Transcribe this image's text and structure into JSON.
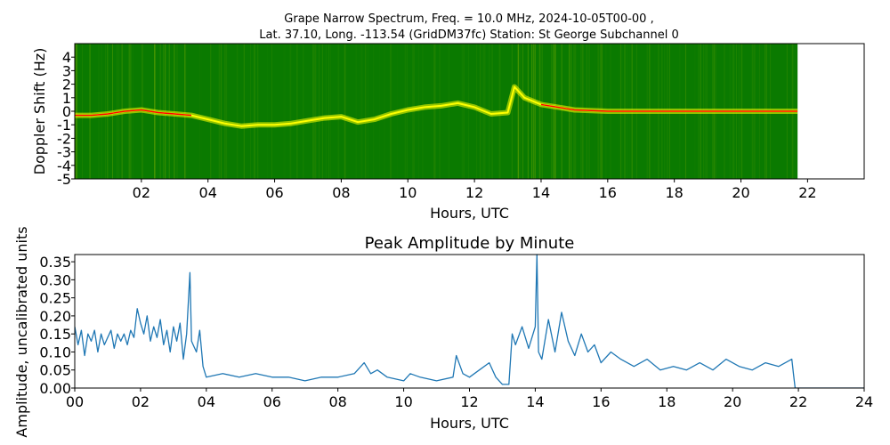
{
  "figure": {
    "title_line1": "Grape Narrow Spectrum, Freq. = 10.0 MHz, 2024-10-05T00-00 ,",
    "title_line2": "Lat.  37.10, Long. -113.54 (GridDM37fc) Station: St George Subchannel 0"
  },
  "chart_data": [
    {
      "type": "heatmap",
      "title": "",
      "xlabel": "Hours, UTC",
      "ylabel": "Doppler Shift (Hz)",
      "xlim": [
        0,
        23.7
      ],
      "ylim": [
        -5,
        5
      ],
      "x_ticks": [
        "02",
        "04",
        "06",
        "08",
        "10",
        "12",
        "14",
        "16",
        "18",
        "20",
        "22"
      ],
      "x_tick_values": [
        2,
        4,
        6,
        8,
        10,
        12,
        14,
        16,
        18,
        20,
        22
      ],
      "y_ticks": [
        "4",
        "3",
        "2",
        "1",
        "0",
        "-1",
        "-2",
        "-3",
        "-4",
        "-5"
      ],
      "y_tick_values": [
        4,
        3,
        2,
        1,
        0,
        -1,
        -2,
        -3,
        -4,
        -5
      ],
      "data_end_hour": 21.7,
      "background_color": "#0a7a00",
      "trace_colors": [
        "#ffff00",
        "#ff0000"
      ],
      "doppler_trace": [
        [
          0.0,
          -0.3
        ],
        [
          0.5,
          -0.3
        ],
        [
          1.0,
          -0.2
        ],
        [
          1.5,
          0.0
        ],
        [
          2.0,
          0.1
        ],
        [
          2.5,
          -0.1
        ],
        [
          3.0,
          -0.2
        ],
        [
          3.5,
          -0.3
        ],
        [
          4.0,
          -0.6
        ],
        [
          4.5,
          -0.9
        ],
        [
          5.0,
          -1.1
        ],
        [
          5.5,
          -1.0
        ],
        [
          6.0,
          -1.0
        ],
        [
          6.5,
          -0.9
        ],
        [
          7.0,
          -0.7
        ],
        [
          7.5,
          -0.5
        ],
        [
          8.0,
          -0.4
        ],
        [
          8.5,
          -0.8
        ],
        [
          9.0,
          -0.6
        ],
        [
          9.5,
          -0.2
        ],
        [
          10.0,
          0.1
        ],
        [
          10.5,
          0.3
        ],
        [
          11.0,
          0.4
        ],
        [
          11.5,
          0.6
        ],
        [
          12.0,
          0.3
        ],
        [
          12.5,
          -0.2
        ],
        [
          13.0,
          -0.1
        ],
        [
          13.2,
          1.8
        ],
        [
          13.5,
          1.0
        ],
        [
          14.0,
          0.5
        ],
        [
          14.5,
          0.3
        ],
        [
          15.0,
          0.1
        ],
        [
          16.0,
          0.0
        ],
        [
          17.0,
          0.0
        ],
        [
          18.0,
          0.0
        ],
        [
          19.0,
          0.0
        ],
        [
          20.0,
          0.0
        ],
        [
          21.0,
          0.0
        ],
        [
          21.7,
          0.0
        ]
      ]
    },
    {
      "type": "line",
      "title": "Peak Amplitude by Minute",
      "xlabel": "Hours, UTC",
      "ylabel": "Amplitude, uncalibrated units",
      "xlim": [
        0,
        24
      ],
      "ylim": [
        0,
        0.37
      ],
      "x_ticks": [
        "00",
        "02",
        "04",
        "06",
        "08",
        "10",
        "12",
        "14",
        "16",
        "18",
        "20",
        "22",
        "24"
      ],
      "x_tick_values": [
        0,
        2,
        4,
        6,
        8,
        10,
        12,
        14,
        16,
        18,
        20,
        22,
        24
      ],
      "y_ticks": [
        "0.00",
        "0.05",
        "0.10",
        "0.15",
        "0.20",
        "0.25",
        "0.30",
        "0.35"
      ],
      "y_tick_values": [
        0,
        0.05,
        0.1,
        0.15,
        0.2,
        0.25,
        0.3,
        0.35
      ],
      "line_color": "#1f77b4",
      "series": [
        {
          "x": [
            0.0,
            0.1,
            0.2,
            0.3,
            0.4,
            0.5,
            0.6,
            0.7,
            0.8,
            0.9,
            1.0,
            1.1,
            1.2,
            1.3,
            1.4,
            1.5,
            1.6,
            1.7,
            1.8,
            1.9,
            2.0,
            2.1,
            2.2,
            2.3,
            2.4,
            2.5,
            2.6,
            2.7,
            2.8,
            2.9,
            3.0,
            3.1,
            3.2,
            3.3,
            3.4,
            3.5,
            3.55,
            3.6,
            3.7,
            3.8,
            3.9,
            4.0,
            4.5,
            5.0,
            5.5,
            6.0,
            6.5,
            7.0,
            7.5,
            8.0,
            8.5,
            8.8,
            9.0,
            9.2,
            9.5,
            10.0,
            10.2,
            10.5,
            11.0,
            11.5,
            11.6,
            11.8,
            12.0,
            12.3,
            12.6,
            12.8,
            13.0,
            13.2,
            13.3,
            13.4,
            13.6,
            13.8,
            14.0,
            14.05,
            14.1,
            14.2,
            14.4,
            14.6,
            14.8,
            15.0,
            15.2,
            15.4,
            15.6,
            15.8,
            16.0,
            16.3,
            16.6,
            17.0,
            17.4,
            17.8,
            18.2,
            18.6,
            19.0,
            19.4,
            19.8,
            20.2,
            20.6,
            21.0,
            21.4,
            21.8,
            21.85,
            21.9,
            22.0,
            24.0
          ],
          "values": [
            0.17,
            0.12,
            0.16,
            0.09,
            0.15,
            0.13,
            0.16,
            0.1,
            0.15,
            0.12,
            0.14,
            0.16,
            0.11,
            0.15,
            0.13,
            0.15,
            0.12,
            0.16,
            0.14,
            0.22,
            0.18,
            0.15,
            0.2,
            0.13,
            0.17,
            0.14,
            0.19,
            0.12,
            0.16,
            0.1,
            0.17,
            0.13,
            0.18,
            0.08,
            0.15,
            0.32,
            0.13,
            0.12,
            0.1,
            0.16,
            0.06,
            0.03,
            0.04,
            0.03,
            0.04,
            0.03,
            0.03,
            0.02,
            0.03,
            0.03,
            0.04,
            0.07,
            0.04,
            0.05,
            0.03,
            0.02,
            0.04,
            0.03,
            0.02,
            0.03,
            0.09,
            0.04,
            0.03,
            0.05,
            0.07,
            0.03,
            0.01,
            0.01,
            0.15,
            0.12,
            0.17,
            0.11,
            0.17,
            0.37,
            0.1,
            0.08,
            0.19,
            0.1,
            0.21,
            0.13,
            0.09,
            0.15,
            0.1,
            0.12,
            0.07,
            0.1,
            0.08,
            0.06,
            0.08,
            0.05,
            0.06,
            0.05,
            0.07,
            0.05,
            0.08,
            0.06,
            0.05,
            0.07,
            0.06,
            0.08,
            0.04,
            0.0,
            0.0,
            0.0
          ]
        }
      ]
    }
  ]
}
